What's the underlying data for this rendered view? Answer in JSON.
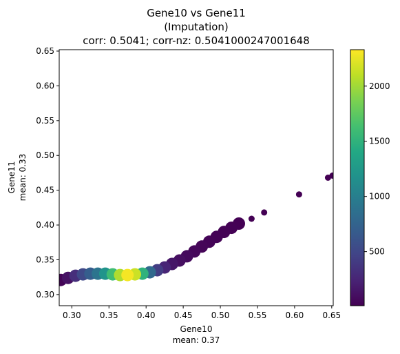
{
  "chart_data": {
    "type": "scatter",
    "title_lines": [
      "Gene10 vs Gene11",
      "(Imputation)",
      "corr: 0.5041; corr-nz: 0.5041000247001648"
    ],
    "xlabel_lines": [
      "Gene10",
      "mean: 0.37"
    ],
    "ylabel_lines": [
      "Gene11",
      "mean: 0.33"
    ],
    "xlim": [
      0.283,
      0.652
    ],
    "ylim": [
      0.284,
      0.652
    ],
    "xticks": [
      "0.30",
      "0.35",
      "0.40",
      "0.45",
      "0.50",
      "0.55",
      "0.60",
      "0.65"
    ],
    "yticks": [
      "0.30",
      "0.35",
      "0.40",
      "0.45",
      "0.50",
      "0.55",
      "0.60",
      "0.65"
    ],
    "colorbar": {
      "colormap": "viridis",
      "range": [
        10,
        2330
      ],
      "ticks": [
        "500",
        "1000",
        "1500",
        "2000"
      ]
    },
    "series": [
      {
        "values": [
          {
            "x": 0.285,
            "y": 0.321,
            "density": 30
          },
          {
            "x": 0.295,
            "y": 0.324,
            "density": 120
          },
          {
            "x": 0.305,
            "y": 0.327,
            "density": 320
          },
          {
            "x": 0.315,
            "y": 0.329,
            "density": 520
          },
          {
            "x": 0.325,
            "y": 0.33,
            "density": 700
          },
          {
            "x": 0.335,
            "y": 0.33,
            "density": 900
          },
          {
            "x": 0.345,
            "y": 0.33,
            "density": 1200
          },
          {
            "x": 0.355,
            "y": 0.329,
            "density": 1600
          },
          {
            "x": 0.365,
            "y": 0.328,
            "density": 2050
          },
          {
            "x": 0.375,
            "y": 0.328,
            "density": 2300
          },
          {
            "x": 0.385,
            "y": 0.329,
            "density": 2150
          },
          {
            "x": 0.395,
            "y": 0.33,
            "density": 1500
          },
          {
            "x": 0.405,
            "y": 0.332,
            "density": 800
          },
          {
            "x": 0.415,
            "y": 0.335,
            "density": 420
          },
          {
            "x": 0.425,
            "y": 0.339,
            "density": 250
          },
          {
            "x": 0.435,
            "y": 0.344,
            "density": 150
          },
          {
            "x": 0.445,
            "y": 0.349,
            "density": 100
          },
          {
            "x": 0.455,
            "y": 0.355,
            "density": 70
          },
          {
            "x": 0.465,
            "y": 0.362,
            "density": 50
          },
          {
            "x": 0.475,
            "y": 0.369,
            "density": 40
          },
          {
            "x": 0.485,
            "y": 0.376,
            "density": 30
          },
          {
            "x": 0.495,
            "y": 0.383,
            "density": 25
          },
          {
            "x": 0.505,
            "y": 0.39,
            "density": 20
          },
          {
            "x": 0.515,
            "y": 0.396,
            "density": 15
          },
          {
            "x": 0.525,
            "y": 0.402,
            "density": 12
          },
          {
            "x": 0.542,
            "y": 0.409,
            "density": 10
          },
          {
            "x": 0.559,
            "y": 0.418,
            "density": 10
          },
          {
            "x": 0.606,
            "y": 0.444,
            "density": 10
          },
          {
            "x": 0.645,
            "y": 0.468,
            "density": 10
          },
          {
            "x": 0.651,
            "y": 0.471,
            "density": 10
          }
        ]
      }
    ]
  }
}
